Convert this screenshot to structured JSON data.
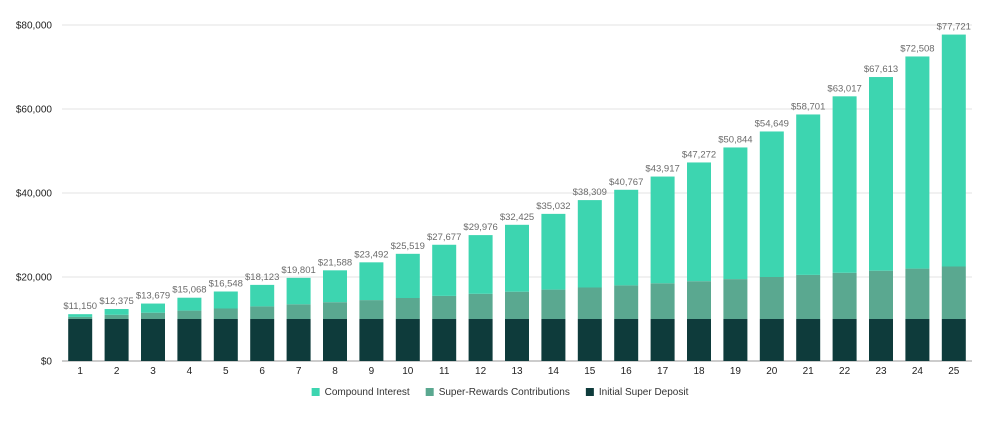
{
  "chart_data": {
    "type": "bar",
    "stacked": true,
    "categories": [
      "1",
      "2",
      "3",
      "4",
      "5",
      "6",
      "7",
      "8",
      "9",
      "10",
      "11",
      "12",
      "13",
      "14",
      "15",
      "16",
      "17",
      "18",
      "19",
      "20",
      "21",
      "22",
      "23",
      "24",
      "25"
    ],
    "series": [
      {
        "name": "Initial Super Deposit",
        "color": "#0e3b3b",
        "values": [
          10000,
          10000,
          10000,
          10000,
          10000,
          10000,
          10000,
          10000,
          10000,
          10000,
          10000,
          10000,
          10000,
          10000,
          10000,
          10000,
          10000,
          10000,
          10000,
          10000,
          10000,
          10000,
          10000,
          10000,
          10000
        ]
      },
      {
        "name": "Super-Rewards Contributions",
        "color": "#5aa890",
        "values": [
          500,
          1000,
          1500,
          2000,
          2500,
          3000,
          3500,
          4000,
          4500,
          5000,
          5500,
          6000,
          6500,
          7000,
          7500,
          8000,
          8500,
          9000,
          9500,
          10000,
          10500,
          11000,
          11500,
          12000,
          12500
        ]
      },
      {
        "name": "Compound Interest",
        "color": "#3dd5b0",
        "values": [
          650,
          1375,
          2179,
          3068,
          4048,
          5123,
          6301,
          7588,
          8992,
          10519,
          12177,
          13976,
          15925,
          18032,
          20809,
          22767,
          25417,
          28272,
          31344,
          34649,
          38201,
          42017,
          46113,
          50508,
          55221
        ]
      }
    ],
    "totals": [
      "$11,150",
      "$12,375",
      "$13,679",
      "$15,068",
      "$16,548",
      "$18,123",
      "$19,801",
      "$21,588",
      "$23,492",
      "$25,519",
      "$27,677",
      "$29,976",
      "$32,425",
      "$35,032",
      "$38,309",
      "$40,767",
      "$43,917",
      "$47,272",
      "$50,844",
      "$54,649",
      "$58,701",
      "$63,017",
      "$67,613",
      "$72,508",
      "$77,721"
    ],
    "ylim": [
      0,
      80000
    ],
    "yticks": [
      {
        "value": 0,
        "label": "$0"
      },
      {
        "value": 20000,
        "label": "$20,000"
      },
      {
        "value": 40000,
        "label": "$40,000"
      },
      {
        "value": 60000,
        "label": "$60,000"
      },
      {
        "value": 80000,
        "label": "$80,000"
      }
    ],
    "grid": true,
    "legend_position": "bottom",
    "legend_order": [
      "Compound Interest",
      "Super-Rewards Contributions",
      "Initial Super Deposit"
    ],
    "title": "",
    "xlabel": "",
    "ylabel": ""
  }
}
